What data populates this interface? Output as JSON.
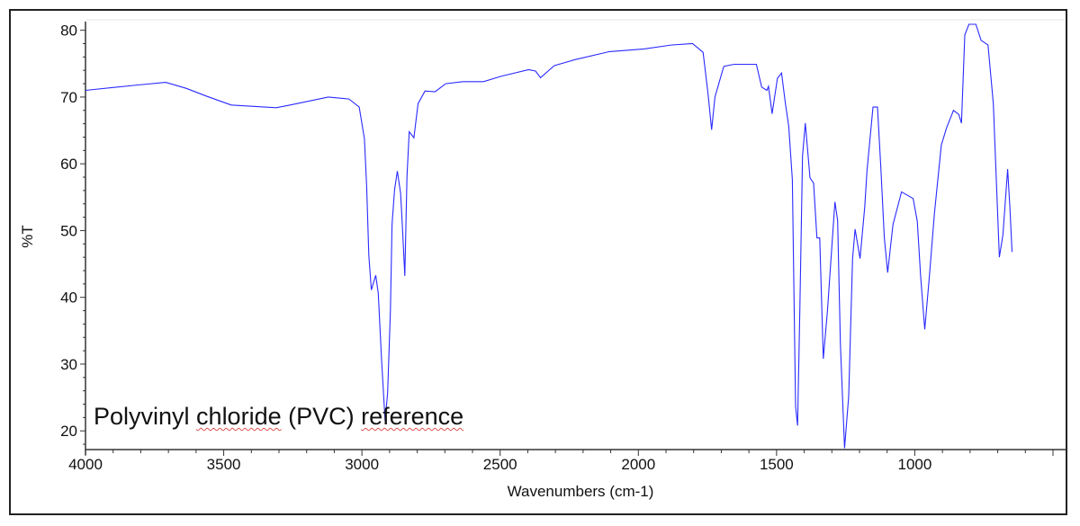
{
  "chart_data": {
    "type": "line",
    "title": "",
    "xlabel": "Wavenumbers (cm-1)",
    "ylabel": "%T",
    "xlim": [
      4000,
      500
    ],
    "ylim": [
      17.2,
      81.3
    ],
    "x_reversed": true,
    "grid": false,
    "x_ticks": [
      4000,
      3500,
      3000,
      2500,
      2000,
      1500,
      1000
    ],
    "y_ticks": [
      20,
      30,
      40,
      50,
      60,
      70,
      80
    ],
    "annotation": {
      "text_parts": [
        "Polyvinyl ",
        "chloride",
        " (PVC) ",
        "reference"
      ]
    },
    "colors": {
      "series": "#2a2aff",
      "axis": "#333333"
    },
    "series": [
      {
        "x": [
          4000,
          3810,
          3710,
          3635,
          3560,
          3473,
          3310,
          3260,
          3122,
          3047,
          3010,
          2991,
          2983,
          2975,
          2966,
          2950,
          2941,
          2929,
          2916,
          2907,
          2897,
          2891,
          2882,
          2872,
          2860,
          2854,
          2845,
          2837,
          2829,
          2812,
          2797,
          2772,
          2735,
          2697,
          2635,
          2560,
          2497,
          2397,
          2372,
          2354,
          2304,
          2229,
          2104,
          1979,
          1879,
          1804,
          1766,
          1748,
          1735,
          1723,
          1691,
          1654,
          1604,
          1573,
          1554,
          1535,
          1529,
          1516,
          1497,
          1482,
          1468,
          1456,
          1443,
          1434,
          1431,
          1424,
          1416,
          1406,
          1396,
          1379,
          1366,
          1354,
          1344,
          1331,
          1316,
          1297,
          1289,
          1279,
          1269,
          1254,
          1239,
          1225,
          1216,
          1198,
          1181,
          1173,
          1151,
          1135,
          1123,
          1110,
          1098,
          1079,
          1048,
          1006,
          991,
          979,
          964,
          947,
          929,
          904,
          885,
          860,
          841,
          831,
          819,
          804,
          779,
          760,
          735,
          716,
          706,
          694,
          681,
          664,
          656,
          648
        ],
        "y": [
          71.0,
          71.8,
          72.2,
          71.3,
          70.1,
          68.8,
          68.4,
          68.8,
          70.0,
          69.7,
          68.5,
          63.8,
          56.6,
          46.3,
          41.1,
          43.3,
          40.6,
          30.8,
          21.5,
          25.7,
          38.0,
          50.9,
          56.1,
          58.9,
          55.6,
          50.9,
          43.2,
          58.1,
          64.8,
          63.9,
          69.0,
          70.9,
          70.8,
          72.0,
          72.3,
          72.3,
          73.1,
          74.1,
          73.9,
          72.9,
          74.7,
          75.6,
          76.8,
          77.2,
          77.8,
          78.0,
          76.7,
          70.5,
          65.1,
          70.0,
          74.6,
          74.9,
          74.9,
          74.9,
          71.5,
          71.0,
          71.6,
          67.5,
          72.8,
          73.6,
          69.0,
          65.6,
          57.6,
          31.9,
          23.6,
          20.8,
          38.0,
          61.2,
          66.1,
          57.9,
          57.1,
          48.9,
          48.9,
          30.8,
          38.0,
          49.4,
          54.3,
          51.5,
          32.9,
          17.4,
          25.2,
          45.8,
          50.2,
          45.8,
          53.5,
          58.9,
          68.5,
          68.5,
          59.7,
          48.9,
          43.7,
          50.9,
          55.8,
          54.8,
          51.4,
          43.2,
          35.2,
          43.2,
          52.5,
          62.8,
          65.4,
          68.0,
          67.4,
          66.1,
          79.3,
          80.9,
          80.9,
          78.5,
          77.8,
          69.0,
          58.7,
          46.0,
          49.4,
          59.2,
          53.5,
          46.8
        ]
      }
    ]
  }
}
